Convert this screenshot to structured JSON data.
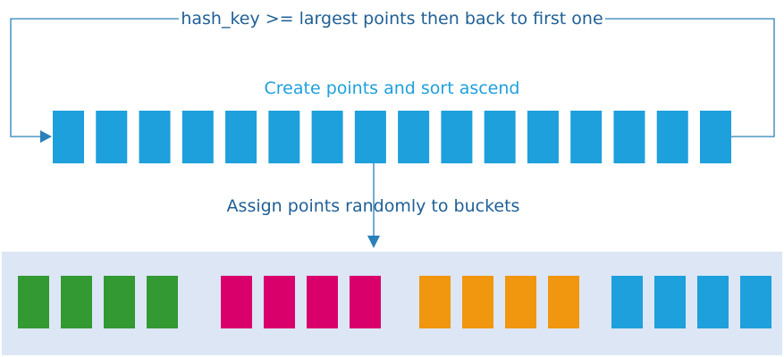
{
  "labels": {
    "wrap_back": "hash_key >= largest points then back to first one",
    "create_sort": "Create points and sort ascend",
    "assign": "Assign points randomly to buckets"
  },
  "points_count": 16,
  "buckets": [
    {
      "color": "#339933",
      "points": 4
    },
    {
      "color": "#d9006c",
      "points": 4
    },
    {
      "color": "#f0960f",
      "points": 4
    },
    {
      "color": "#1ea0dc",
      "points": 4
    }
  ],
  "colors": {
    "point": "#1ea0dc",
    "line": "#2a80b9",
    "panel": "#dce6f5",
    "label_dark": "#1f5f96",
    "label_accent": "#1ea0dc"
  }
}
